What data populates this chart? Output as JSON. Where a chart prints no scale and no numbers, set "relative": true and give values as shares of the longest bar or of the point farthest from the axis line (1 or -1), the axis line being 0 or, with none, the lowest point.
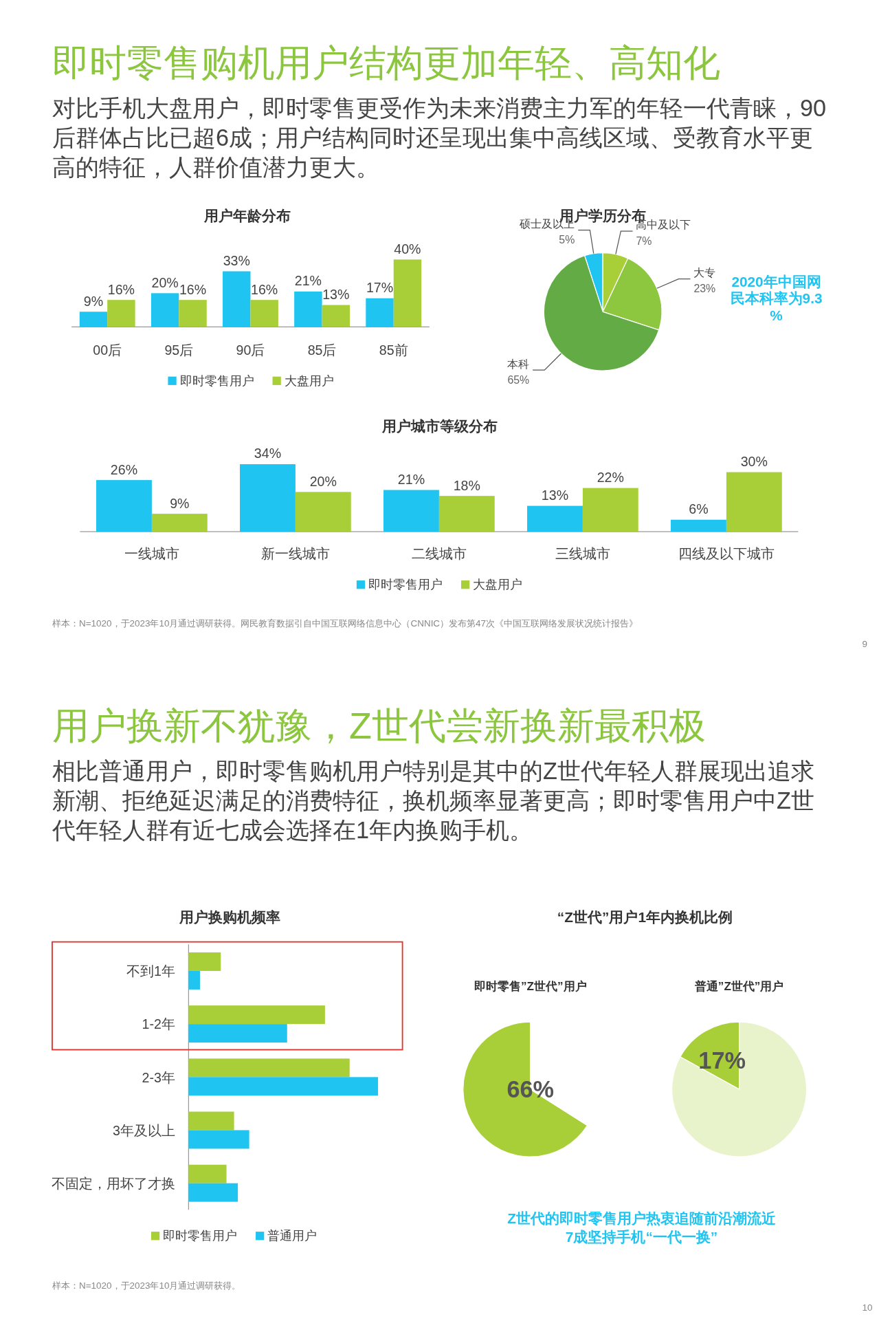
{
  "chart_data": [
    {
      "type": "other",
      "title": "即时零售购机用户结构更加年轻、高知化",
      "subtitle": "对比手机大盘用户，即时零售更受作为未来消费主力军的年轻一代青睐，90后群体占比已超6成；用户结构同时还呈现出集中高线区域、受教育水平更高的特征，人群价值潜力更大。"
    },
    {
      "type": "bar",
      "title": "用户年龄分布",
      "categories": [
        "00后",
        "95后",
        "90后",
        "85后",
        "85前"
      ],
      "legend": "bottom",
      "series": [
        {
          "name": "即时零售用户",
          "color": "#1fc4f0",
          "values": [
            9,
            20,
            33,
            21,
            17
          ],
          "value_labels": [
            "9%",
            "20%",
            "33%",
            "21%",
            "17%"
          ]
        },
        {
          "name": "大盘用户",
          "color": "#a9cf38",
          "values": [
            16,
            16,
            16,
            13,
            40
          ],
          "value_labels": [
            "16%",
            "16%",
            "16%",
            "13%",
            "40%"
          ]
        }
      ]
    },
    {
      "type": "pie",
      "title": "用户学历分布",
      "categories": [
        "硕士及以上",
        "高中及以下",
        "大专",
        "本科"
      ],
      "values": [
        5,
        7,
        23,
        65
      ],
      "colors": [
        "#1fc4f0",
        "#a9cf38",
        "#8dc63f",
        "#62ab45"
      ],
      "value_labels": [
        "5%",
        "7%",
        "23%",
        "65%"
      ],
      "annotations": [
        "2020年中国网民本科率为9.3%"
      ]
    },
    {
      "type": "bar",
      "title": "用户城市等级分布",
      "categories": [
        "一线城市",
        "新一线城市",
        "二线城市",
        "三线城市",
        "四线及以下城市"
      ],
      "legend": "bottom",
      "series": [
        {
          "name": "即时零售用户",
          "color": "#1fc4f0",
          "values": [
            26,
            34,
            21,
            13,
            6
          ],
          "value_labels": [
            "26%",
            "34%",
            "21%",
            "13%",
            "6%"
          ]
        },
        {
          "name": "大盘用户",
          "color": "#a9cf38",
          "values": [
            9,
            20,
            18,
            22,
            30
          ],
          "value_labels": [
            "9%",
            "20%",
            "18%",
            "22%",
            "30%"
          ]
        }
      ]
    },
    {
      "type": "other",
      "annotations": [
        "样本：N=1020，于2023年10月通过调研获得。网民教育数据引自中国互联网络信息中心（CNNIC）发布第47次《中国互联网络发展状况统计报告》",
        "9"
      ]
    },
    {
      "type": "other",
      "title": "用户换新不犹豫，Z世代尝新换新最积极",
      "subtitle": "相比普通用户，即时零售购机用户特别是其中的Z世代年轻人群展现出追求新潮、拒绝延迟满足的消费特征，换机频率显著更高；即时零售用户中Z世代年轻人群有近七成会选择在1年内换购手机。"
    },
    {
      "type": "bar",
      "orientation": "horizontal",
      "relative": true,
      "title": "用户换购机频率",
      "categories": [
        "不到1年",
        "1-2年",
        "2-3年",
        "3年及以上",
        "不固定，用坏了才换"
      ],
      "legend": "bottom",
      "series": [
        {
          "name": "即时零售用户",
          "color": "#a9cf38",
          "values": [
            0.17,
            0.72,
            0.85,
            0.24,
            0.2
          ]
        },
        {
          "name": "普通用户",
          "color": "#1fc4f0",
          "values": [
            0.06,
            0.52,
            1,
            0.32,
            0.26
          ]
        }
      ]
    },
    {
      "type": "other",
      "title": "“Z世代”用户1年内换机比例",
      "annotations": [
        "Z世代的即时零售用户热衷追随前沿潮流近7成坚持手机“一代一换”"
      ]
    },
    {
      "type": "pie",
      "title": "即时零售”Z世代”用户",
      "categories": [
        null,
        null
      ],
      "values": [
        66,
        34
      ],
      "colors": [
        "#a9cf38",
        "#ffffff"
      ],
      "value_labels": [
        "66%",
        null
      ]
    },
    {
      "type": "pie",
      "title": "普通”Z世代”用户",
      "categories": [
        null,
        null
      ],
      "values": [
        17,
        83
      ],
      "colors": [
        "#a9cf38",
        "#e8f3cc"
      ],
      "value_labels": [
        "17%",
        null
      ]
    },
    {
      "type": "other",
      "annotations": [
        "样本：N=1020，于2023年10月通过调研获得。",
        "10"
      ]
    }
  ]
}
